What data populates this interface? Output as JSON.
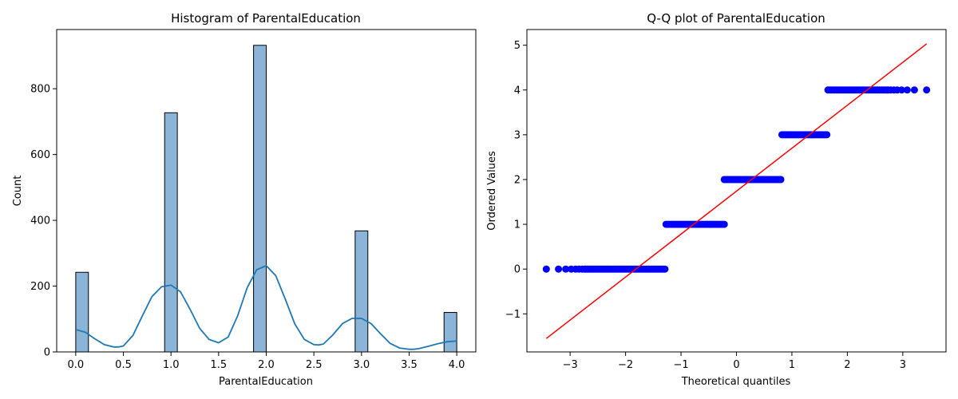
{
  "chart_data": [
    {
      "type": "bar",
      "title": "Histogram of ParentalEducation",
      "xlabel": "ParentalEducation",
      "ylabel": "Count",
      "xlim": [
        -0.2,
        4.2
      ],
      "ylim": [
        0,
        980
      ],
      "xticks": [
        0.0,
        0.5,
        1.0,
        1.5,
        2.0,
        2.5,
        3.0,
        3.5,
        4.0
      ],
      "xtick_labels": [
        "0.0",
        "0.5",
        "1.0",
        "1.5",
        "2.0",
        "2.5",
        "3.0",
        "3.5",
        "4.0"
      ],
      "yticks": [
        0,
        200,
        400,
        600,
        800
      ],
      "ytick_labels": [
        "0",
        "200",
        "400",
        "600",
        "800"
      ],
      "bin_width": 0.1333,
      "bars": [
        {
          "x": 0.0,
          "count": 242
        },
        {
          "x": 0.9333,
          "count": 727
        },
        {
          "x": 1.8667,
          "count": 932
        },
        {
          "x": 2.9333,
          "count": 368
        },
        {
          "x": 3.8667,
          "count": 120
        }
      ],
      "bar_color": "#8ab4d8",
      "edge_color": "#000000",
      "kde_color": "#1f77b4",
      "kde": {
        "x": [
          0.0,
          0.1,
          0.2,
          0.3,
          0.4,
          0.45,
          0.5,
          0.6,
          0.7,
          0.8,
          0.9,
          1.0,
          1.1,
          1.2,
          1.3,
          1.4,
          1.5,
          1.6,
          1.7,
          1.8,
          1.9,
          2.0,
          2.1,
          2.2,
          2.3,
          2.4,
          2.5,
          2.55,
          2.6,
          2.7,
          2.8,
          2.9,
          3.0,
          3.1,
          3.2,
          3.3,
          3.4,
          3.5,
          3.55,
          3.6,
          3.7,
          3.8,
          3.9,
          4.0
        ],
        "y": [
          68,
          60,
          40,
          22,
          15,
          15,
          18,
          50,
          110,
          168,
          198,
          203,
          183,
          130,
          72,
          38,
          28,
          45,
          110,
          195,
          250,
          262,
          232,
          160,
          85,
          38,
          22,
          21,
          24,
          52,
          86,
          102,
          102,
          86,
          55,
          26,
          12,
          8,
          8,
          10,
          17,
          25,
          31,
          33
        ]
      }
    },
    {
      "type": "scatter",
      "title": "Q-Q plot of ParentalEducation",
      "xlabel": "Theoretical quantiles",
      "ylabel": "Ordered Values",
      "xlim": [
        -3.78,
        3.78
      ],
      "ylim": [
        -1.85,
        5.35
      ],
      "xticks": [
        -3,
        -2,
        -1,
        0,
        1,
        2,
        3
      ],
      "xtick_labels": [
        "−3",
        "−2",
        "−1",
        "0",
        "1",
        "2",
        "3"
      ],
      "yticks": [
        -1,
        0,
        1,
        2,
        3,
        4,
        5
      ],
      "ytick_labels": [
        "−1",
        "0",
        "1",
        "2",
        "3",
        "4",
        "5"
      ],
      "point_color": "#0000ff",
      "line_color": "#ff0000",
      "groups": [
        {
          "value": 0,
          "x_start": -3.43,
          "x_end": -1.27
        },
        {
          "value": 1,
          "x_start": -1.27,
          "x_end": -0.22
        },
        {
          "value": 2,
          "x_start": -0.22,
          "x_end": 0.82
        },
        {
          "value": 3,
          "x_start": 0.82,
          "x_end": 1.65
        },
        {
          "value": 4,
          "x_start": 1.65,
          "x_end": 3.43
        }
      ],
      "sparse_tail_x": {
        "0": [
          -3.43,
          -3.21,
          -3.08,
          -2.98,
          -2.9,
          -2.84,
          -2.78,
          -2.73
        ],
        "4": [
          3.43,
          3.21,
          3.08,
          2.98,
          2.9,
          2.84,
          2.78,
          2.73
        ]
      },
      "fit_line": {
        "x": [
          -3.43,
          3.43
        ],
        "y": [
          -1.55,
          5.03
        ]
      }
    }
  ]
}
